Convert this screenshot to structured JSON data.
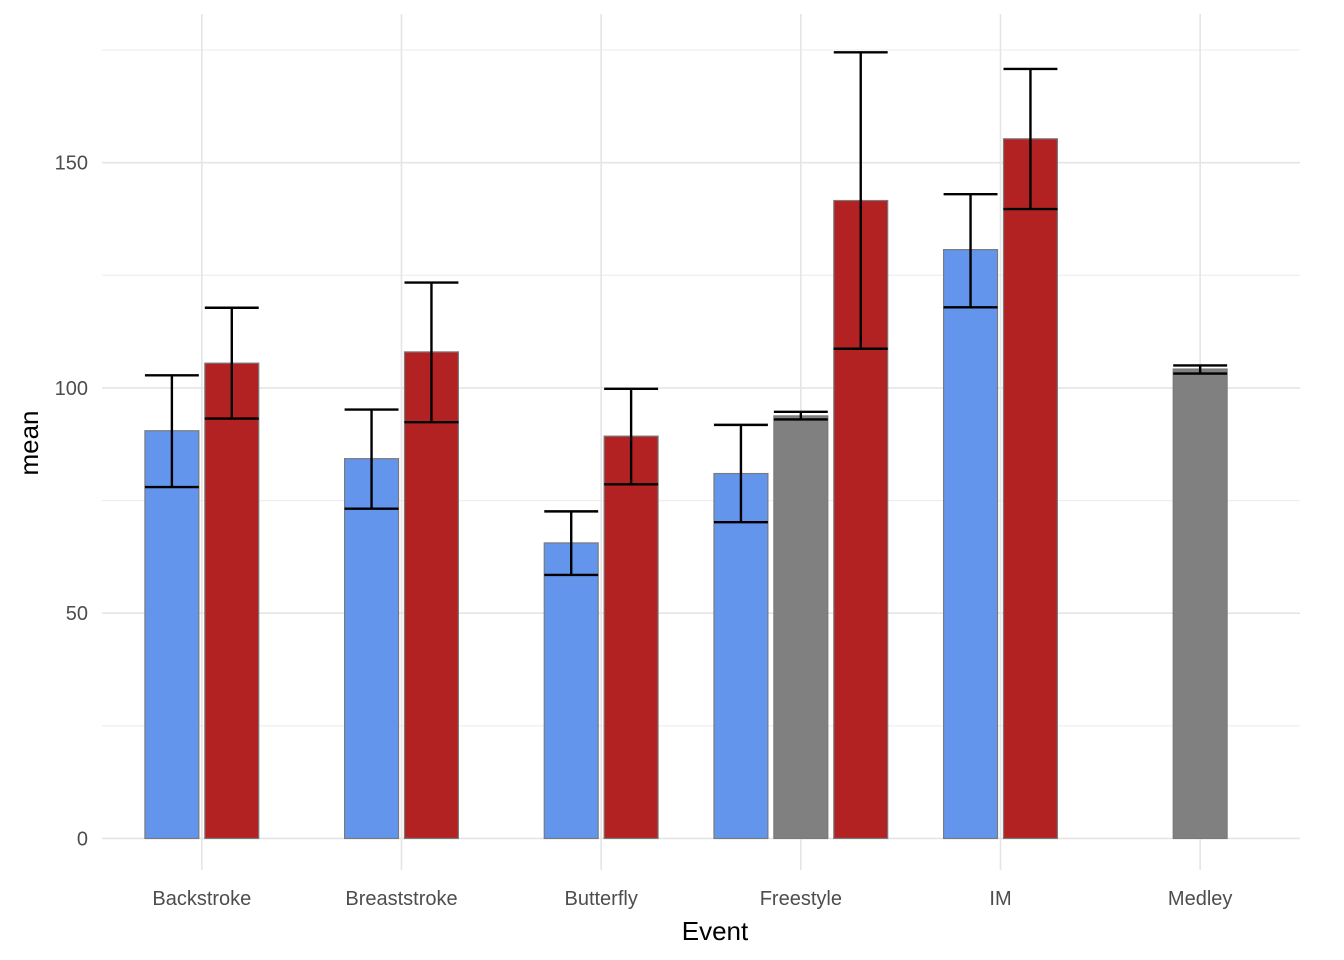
{
  "chart_data": {
    "type": "bar",
    "title": "",
    "xlabel": "Event",
    "ylabel": "mean",
    "ylim": [
      -7,
      183
    ],
    "yticks": [
      0,
      50,
      100,
      150
    ],
    "grid": true,
    "legend": "none",
    "categories": [
      "Backstroke",
      "Breaststroke",
      "Butterfly",
      "Freestyle",
      "IM",
      "Medley"
    ],
    "groups": [
      {
        "category": "Backstroke",
        "bars": [
          {
            "color": "#6495ED",
            "value": 90.5,
            "err_low": 78.0,
            "err_high": 102.8
          },
          {
            "color": "#B22222",
            "value": 105.5,
            "err_low": 93.2,
            "err_high": 117.8
          }
        ]
      },
      {
        "category": "Breaststroke",
        "bars": [
          {
            "color": "#6495ED",
            "value": 84.3,
            "err_low": 73.2,
            "err_high": 95.2
          },
          {
            "color": "#B22222",
            "value": 108.0,
            "err_low": 92.4,
            "err_high": 123.4
          }
        ]
      },
      {
        "category": "Butterfly",
        "bars": [
          {
            "color": "#6495ED",
            "value": 65.6,
            "err_low": 58.5,
            "err_high": 72.6
          },
          {
            "color": "#B22222",
            "value": 89.3,
            "err_low": 78.6,
            "err_high": 99.8
          }
        ]
      },
      {
        "category": "Freestyle",
        "bars": [
          {
            "color": "#6495ED",
            "value": 81.0,
            "err_low": 70.2,
            "err_high": 91.8
          },
          {
            "color": "#808080",
            "value": 93.8,
            "err_low": 93.0,
            "err_high": 94.7
          },
          {
            "color": "#B22222",
            "value": 141.6,
            "err_low": 108.7,
            "err_high": 174.5
          }
        ]
      },
      {
        "category": "IM",
        "bars": [
          {
            "color": "#6495ED",
            "value": 130.7,
            "err_low": 117.9,
            "err_high": 143.0
          },
          {
            "color": "#B22222",
            "value": 155.3,
            "err_low": 139.7,
            "err_high": 170.8
          }
        ]
      },
      {
        "category": "Medley",
        "bars": [
          {
            "color": "#808080",
            "value": 104.2,
            "err_low": 103.2,
            "err_high": 105.0
          }
        ]
      }
    ]
  }
}
